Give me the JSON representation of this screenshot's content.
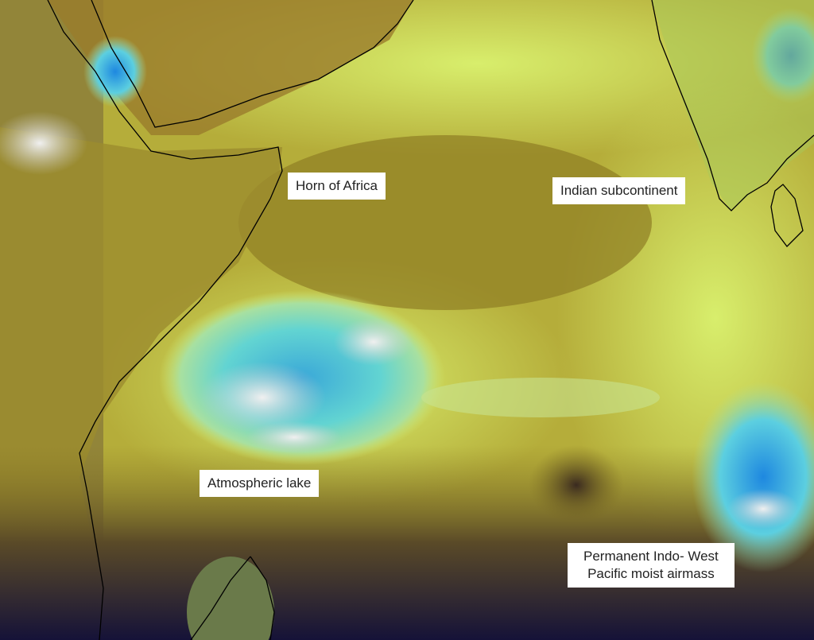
{
  "map": {
    "colors": {
      "dry_olive": "#9a8a2a",
      "moist_yellow_green": "#d6ea6a",
      "lake_cyan": "#5fd3d6",
      "deep_blue": "#2a7fd0",
      "very_dry_navy": "#1e1640",
      "cloud_white": "#e6e6e6",
      "coastline": "#000000"
    },
    "labels": {
      "horn": "Horn of Africa",
      "india": "Indian subcontinent",
      "lake": "Atmospheric lake",
      "airmass_line1": "Permanent Indo- West",
      "airmass_line2": "Pacific moist airmass"
    }
  }
}
